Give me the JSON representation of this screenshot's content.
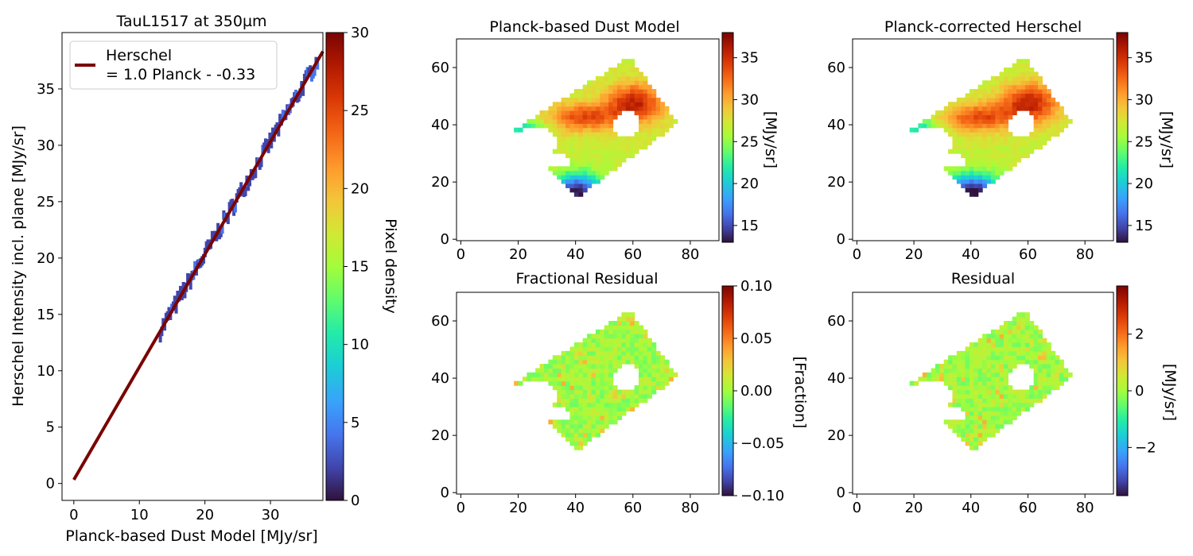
{
  "chart_data": [
    {
      "type": "heatmap",
      "title": "TauL1517 at 350µm",
      "xlabel": "Planck-based Dust Model [MJy/sr]",
      "ylabel": "Herschel Intensity incl. plane [MJy/sr]",
      "xlim": [
        -1.8,
        38
      ],
      "ylim": [
        -1.5,
        40
      ],
      "xticks": [
        "0",
        "10",
        "20",
        "30"
      ],
      "yticks": [
        "0",
        "5",
        "10",
        "15",
        "20",
        "25",
        "30",
        "35"
      ],
      "density_points": {
        "x_start": 13.2,
        "x_end": 37.2,
        "slope": 1.0,
        "intercept": 0.33
      },
      "fit_line": {
        "label_line1": "Herschel",
        "label_line2": "= 1.0 Planck - -0.33",
        "slope": 1.0,
        "intercept": 0.33,
        "color": "#7a0403",
        "x_start": 0,
        "x_end": 38
      },
      "colorbar": {
        "label": "Pixel density",
        "range": [
          0,
          30
        ],
        "ticks": [
          "0",
          "5",
          "10",
          "15",
          "20",
          "25",
          "30"
        ]
      },
      "legend_position": "upper-left"
    },
    {
      "type": "heatmap",
      "title": "Planck-based Dust Model",
      "xlim": [
        -1.5,
        90
      ],
      "ylim": [
        -0.5,
        70
      ],
      "xticks": [
        "0",
        "20",
        "40",
        "60",
        "80"
      ],
      "yticks": [
        "0",
        "20",
        "40",
        "60"
      ],
      "colorbar": {
        "label": "[MJy/sr]",
        "range": [
          13,
          38
        ],
        "ticks": [
          "15",
          "20",
          "25",
          "30",
          "35"
        ]
      }
    },
    {
      "type": "heatmap",
      "title": "Planck-corrected Herschel",
      "xlim": [
        -1.5,
        90
      ],
      "ylim": [
        -0.5,
        70
      ],
      "xticks": [
        "0",
        "20",
        "40",
        "60",
        "80"
      ],
      "yticks": [
        "0",
        "20",
        "40",
        "60"
      ],
      "colorbar": {
        "label": "[MJy/sr]",
        "range": [
          13,
          38
        ],
        "ticks": [
          "15",
          "20",
          "25",
          "30",
          "35"
        ]
      }
    },
    {
      "type": "heatmap",
      "title": "Fractional Residual",
      "xlim": [
        -1.5,
        90
      ],
      "ylim": [
        -0.5,
        70
      ],
      "xticks": [
        "0",
        "20",
        "40",
        "60",
        "80"
      ],
      "yticks": [
        "0",
        "20",
        "40",
        "60"
      ],
      "colorbar": {
        "label": "[Fraction]",
        "range": [
          -0.1,
          0.1
        ],
        "ticks": [
          "−0.10",
          "−0.05",
          "0.00",
          "0.05",
          "0.10"
        ]
      }
    },
    {
      "type": "heatmap",
      "title": "Residual",
      "xlim": [
        -1.5,
        90
      ],
      "ylim": [
        -0.5,
        70
      ],
      "xticks": [
        "0",
        "20",
        "40",
        "60",
        "80"
      ],
      "yticks": [
        "0",
        "20",
        "40",
        "60"
      ],
      "colorbar": {
        "label": "[MJy/sr]",
        "range": [
          -3.7,
          3.7
        ],
        "ticks": [
          "−2",
          "0",
          "2"
        ]
      }
    }
  ]
}
